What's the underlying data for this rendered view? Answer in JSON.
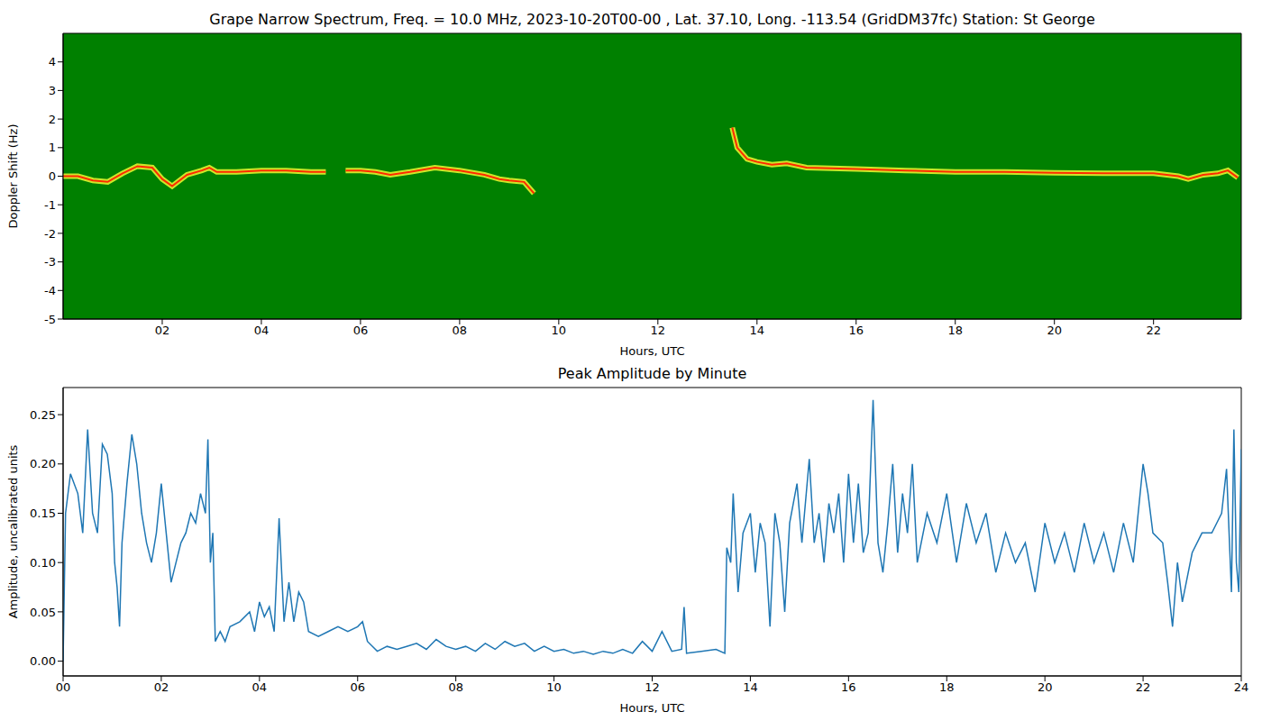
{
  "chart_data": [
    {
      "type": "line",
      "title": "Grape Narrow Spectrum, Freq. = 10.0 MHz, 2023-10-20T00-00 , Lat.  37.10, Long. -113.54 (GridDM37fc) Station: St George",
      "x_label": "Hours, UTC",
      "y_label": "Doppler Shift (Hz)",
      "color": "#ff2a00",
      "x": [
        0,
        0.3,
        0.6,
        0.9,
        1.2,
        1.5,
        1.8,
        2.0,
        2.2,
        2.5,
        2.8,
        2.95,
        3.1,
        3.5,
        4.0,
        4.5,
        5.0,
        5.3,
        5.5,
        5.7,
        6.0,
        6.3,
        6.6,
        7.0,
        7.5,
        8.0,
        8.5,
        8.8,
        9.0,
        9.3,
        9.5,
        9.6,
        13.5,
        13.6,
        13.8,
        14.0,
        14.3,
        14.6,
        15.0,
        16.0,
        17.0,
        18.0,
        19.0,
        20.0,
        21.0,
        22.0,
        22.5,
        22.7,
        23.0,
        23.3,
        23.5,
        23.7
      ],
      "values": [
        0,
        0,
        -0.15,
        -0.2,
        0.1,
        0.35,
        0.3,
        -0.1,
        -0.35,
        0.05,
        0.2,
        0.3,
        0.15,
        0.15,
        0.2,
        0.2,
        0.15,
        0.15,
        null,
        0.2,
        0.2,
        0.15,
        0.05,
        0.15,
        0.3,
        0.2,
        0.05,
        -0.1,
        -0.15,
        -0.2,
        -0.6,
        null,
        1.7,
        1.0,
        0.6,
        0.5,
        0.4,
        0.45,
        0.3,
        0.25,
        0.2,
        0.15,
        0.15,
        0.12,
        0.1,
        0.1,
        0.0,
        -0.1,
        0.05,
        0.1,
        0.2,
        -0.05
      ],
      "xlim": [
        0,
        23.77
      ],
      "ylim": [
        -5,
        5
      ],
      "xticks": [
        {
          "value": 2,
          "label": "02"
        },
        {
          "value": 4,
          "label": "04"
        },
        {
          "value": 6,
          "label": "06"
        },
        {
          "value": 8,
          "label": "08"
        },
        {
          "value": 10,
          "label": "10"
        },
        {
          "value": 12,
          "label": "12"
        },
        {
          "value": 14,
          "label": "14"
        },
        {
          "value": 16,
          "label": "16"
        },
        {
          "value": 18,
          "label": "18"
        },
        {
          "value": 20,
          "label": "20"
        },
        {
          "value": 22,
          "label": "22"
        }
      ],
      "yticks": [
        -5,
        -4,
        -3,
        -2,
        -1,
        0,
        1,
        2,
        3,
        4
      ]
    },
    {
      "type": "line",
      "title": "Peak Amplitude by Minute",
      "x_label": "Hours, UTC",
      "y_label": "Amplitude, uncalibrated units",
      "color": "#1f77b4",
      "x": [
        0.0,
        0.05,
        0.15,
        0.3,
        0.4,
        0.5,
        0.6,
        0.7,
        0.8,
        0.9,
        1.0,
        1.05,
        1.1,
        1.15,
        1.2,
        1.3,
        1.4,
        1.5,
        1.6,
        1.7,
        1.8,
        1.9,
        2.0,
        2.1,
        2.2,
        2.3,
        2.4,
        2.5,
        2.6,
        2.7,
        2.8,
        2.9,
        2.95,
        3.0,
        3.05,
        3.1,
        3.2,
        3.3,
        3.4,
        3.6,
        3.8,
        3.9,
        4.0,
        4.1,
        4.2,
        4.3,
        4.4,
        4.5,
        4.6,
        4.7,
        4.8,
        4.9,
        5.0,
        5.2,
        5.4,
        5.6,
        5.8,
        6.0,
        6.1,
        6.2,
        6.4,
        6.6,
        6.8,
        7.0,
        7.2,
        7.4,
        7.6,
        7.8,
        8.0,
        8.2,
        8.4,
        8.6,
        8.8,
        9.0,
        9.2,
        9.4,
        9.6,
        9.8,
        10.0,
        10.2,
        10.4,
        10.6,
        10.8,
        11.0,
        11.2,
        11.4,
        11.6,
        11.8,
        12.0,
        12.2,
        12.4,
        12.6,
        12.65,
        12.7,
        13.0,
        13.3,
        13.48,
        13.52,
        13.6,
        13.65,
        13.75,
        13.85,
        14.0,
        14.1,
        14.2,
        14.3,
        14.4,
        14.5,
        14.6,
        14.7,
        14.8,
        14.95,
        15.05,
        15.2,
        15.3,
        15.4,
        15.5,
        15.6,
        15.7,
        15.8,
        15.9,
        16.0,
        16.1,
        16.2,
        16.3,
        16.4,
        16.5,
        16.6,
        16.7,
        16.8,
        16.9,
        17.0,
        17.1,
        17.2,
        17.3,
        17.4,
        17.6,
        17.8,
        18.0,
        18.2,
        18.4,
        18.6,
        18.8,
        19.0,
        19.2,
        19.4,
        19.6,
        19.8,
        20.0,
        20.2,
        20.4,
        20.6,
        20.8,
        21.0,
        21.2,
        21.4,
        21.6,
        21.8,
        22.0,
        22.1,
        22.2,
        22.4,
        22.5,
        22.6,
        22.7,
        22.8,
        23.0,
        23.2,
        23.4,
        23.6,
        23.7,
        23.8,
        23.85,
        23.9,
        23.95,
        24.0
      ],
      "values": [
        0.0,
        0.15,
        0.19,
        0.17,
        0.13,
        0.235,
        0.15,
        0.13,
        0.22,
        0.21,
        0.17,
        0.1,
        0.075,
        0.035,
        0.12,
        0.18,
        0.23,
        0.2,
        0.15,
        0.12,
        0.1,
        0.13,
        0.18,
        0.13,
        0.08,
        0.1,
        0.12,
        0.13,
        0.15,
        0.14,
        0.17,
        0.15,
        0.225,
        0.1,
        0.13,
        0.02,
        0.03,
        0.02,
        0.035,
        0.04,
        0.05,
        0.03,
        0.06,
        0.045,
        0.055,
        0.03,
        0.145,
        0.04,
        0.08,
        0.04,
        0.07,
        0.06,
        0.03,
        0.025,
        0.03,
        0.035,
        0.03,
        0.035,
        0.04,
        0.02,
        0.01,
        0.015,
        0.012,
        0.015,
        0.018,
        0.012,
        0.022,
        0.015,
        0.012,
        0.015,
        0.01,
        0.018,
        0.012,
        0.02,
        0.015,
        0.018,
        0.01,
        0.015,
        0.01,
        0.012,
        0.008,
        0.01,
        0.007,
        0.01,
        0.008,
        0.012,
        0.008,
        0.02,
        0.01,
        0.03,
        0.01,
        0.012,
        0.055,
        0.008,
        0.01,
        0.012,
        0.008,
        0.115,
        0.1,
        0.17,
        0.07,
        0.13,
        0.15,
        0.09,
        0.14,
        0.12,
        0.035,
        0.15,
        0.12,
        0.05,
        0.14,
        0.18,
        0.12,
        0.205,
        0.12,
        0.15,
        0.1,
        0.16,
        0.13,
        0.17,
        0.1,
        0.19,
        0.12,
        0.18,
        0.11,
        0.13,
        0.265,
        0.12,
        0.09,
        0.14,
        0.2,
        0.11,
        0.17,
        0.13,
        0.2,
        0.1,
        0.15,
        0.12,
        0.17,
        0.1,
        0.16,
        0.12,
        0.15,
        0.09,
        0.13,
        0.1,
        0.12,
        0.07,
        0.14,
        0.1,
        0.13,
        0.09,
        0.14,
        0.1,
        0.13,
        0.09,
        0.14,
        0.1,
        0.2,
        0.17,
        0.13,
        0.12,
        0.08,
        0.035,
        0.1,
        0.06,
        0.11,
        0.13,
        0.13,
        0.15,
        0.195,
        0.07,
        0.235,
        0.1,
        0.07,
        0.215
      ],
      "xlim": [
        0,
        24
      ],
      "ylim": [
        -0.015,
        0.2775
      ],
      "xticks": [
        {
          "value": 0,
          "label": "00"
        },
        {
          "value": 2,
          "label": "02"
        },
        {
          "value": 4,
          "label": "04"
        },
        {
          "value": 6,
          "label": "06"
        },
        {
          "value": 8,
          "label": "08"
        },
        {
          "value": 10,
          "label": "10"
        },
        {
          "value": 12,
          "label": "12"
        },
        {
          "value": 14,
          "label": "14"
        },
        {
          "value": 16,
          "label": "16"
        },
        {
          "value": 18,
          "label": "18"
        },
        {
          "value": 20,
          "label": "20"
        },
        {
          "value": 22,
          "label": "22"
        },
        {
          "value": 24,
          "label": "24"
        }
      ],
      "yticks": [
        {
          "value": 0,
          "label": "0.00"
        },
        {
          "value": 0.05,
          "label": "0.05"
        },
        {
          "value": 0.1,
          "label": "0.10"
        },
        {
          "value": 0.15,
          "label": "0.15"
        },
        {
          "value": 0.2,
          "label": "0.20"
        },
        {
          "value": 0.25,
          "label": "0.25"
        }
      ]
    }
  ]
}
